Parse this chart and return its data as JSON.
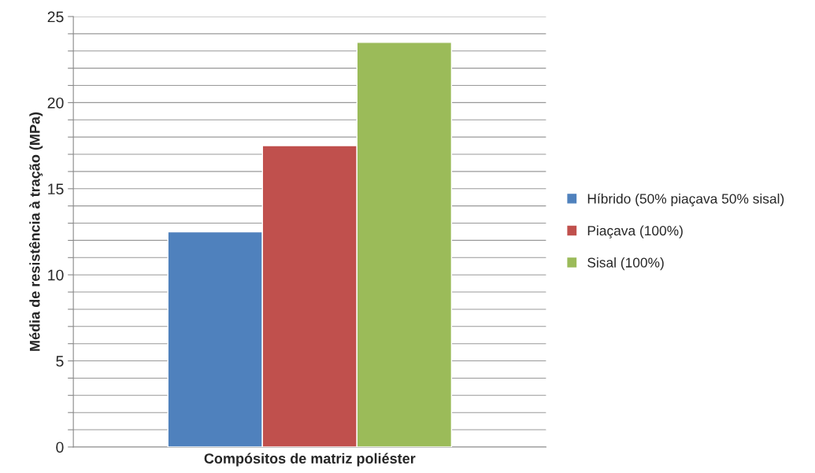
{
  "chart_data": {
    "type": "bar",
    "xlabel": "Compósitos de matriz poliéster",
    "ylabel": "Média de resistência à tração (MPa)",
    "categories": [
      null
    ],
    "series": [
      {
        "name": "Híbrido (50% piaçava 50% sisal)",
        "color": "#4f81bd",
        "values": [
          12.5
        ]
      },
      {
        "name": "Piaçava (100%)",
        "color": "#c0504d",
        "values": [
          17.5
        ]
      },
      {
        "name": "Sisal (100%)",
        "color": "#9bbb59",
        "values": [
          23.5
        ]
      }
    ],
    "ylim": [
      0,
      25
    ],
    "yticks": [
      0,
      {
        "value": 1,
        "label": null
      },
      {
        "value": 2,
        "label": null
      },
      {
        "value": 3,
        "label": null
      },
      {
        "value": 4,
        "label": null
      },
      5,
      {
        "value": 6,
        "label": null
      },
      {
        "value": 7,
        "label": null
      },
      {
        "value": 8,
        "label": null
      },
      {
        "value": 9,
        "label": null
      },
      10,
      {
        "value": 11,
        "label": null
      },
      {
        "value": 12,
        "label": null
      },
      {
        "value": 13,
        "label": null
      },
      {
        "value": 14,
        "label": null
      },
      15,
      {
        "value": 16,
        "label": null
      },
      {
        "value": 17,
        "label": null
      },
      {
        "value": 18,
        "label": null
      },
      {
        "value": 19,
        "label": null
      },
      20,
      {
        "value": 21,
        "label": null
      },
      {
        "value": 22,
        "label": null
      },
      {
        "value": 23,
        "label": null
      },
      {
        "value": 24,
        "label": null
      },
      25
    ],
    "grid": "y",
    "legend": "right"
  }
}
